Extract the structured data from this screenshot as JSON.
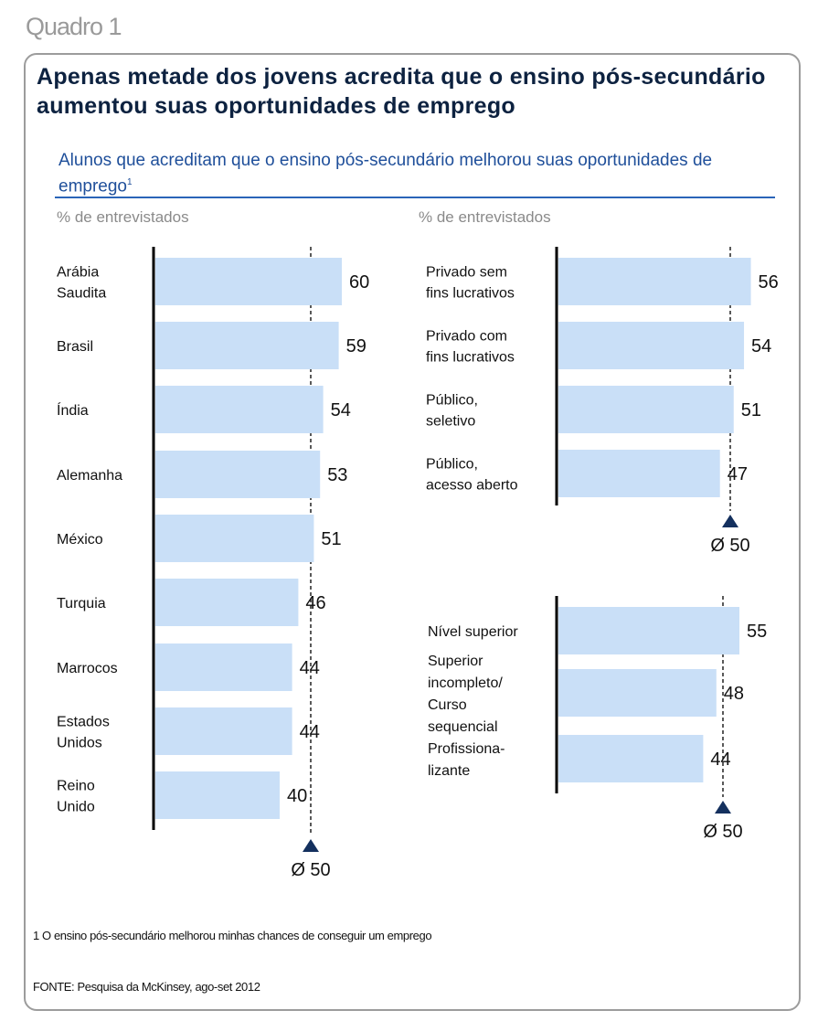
{
  "label": "Quadro 1",
  "title": "Apenas metade dos jovens acredita que o ensino  pós-secundário aumentou suas oportunidades de emprego",
  "subtitle": "Alunos que acreditam que o ensino pós-secundário melhorou suas oportunidades de emprego",
  "subtitle_footnote_mark": "1",
  "footnote": "1 O ensino pós-secundário melhorou minhas chances de conseguir um emprego",
  "source": "FONTE: Pesquisa da McKinsey, ago-set 2012",
  "colors": {
    "bar": "#c9dff7",
    "marker": "#14305e",
    "title": "#0d2240",
    "subtitle": "#1f4f9a"
  },
  "chart_data": [
    {
      "type": "bar",
      "orientation": "horizontal",
      "unit_label": "% de entrevistados",
      "categories": [
        "Arábia Saudita",
        "Brasil",
        "Índia",
        "Alemanha",
        "México",
        "Turquia",
        "Marrocos",
        "Estados Unidos",
        "Reino Unido"
      ],
      "category_lines": [
        [
          "Arábia",
          "Saudita"
        ],
        [
          "Brasil"
        ],
        [
          "Índia"
        ],
        [
          "Alemanha"
        ],
        [
          "México"
        ],
        [
          "Turquia"
        ],
        [
          "Marrocos"
        ],
        [
          "Estados",
          "Unidos"
        ],
        [
          "Reino",
          "Unido"
        ]
      ],
      "values": [
        60,
        59,
        54,
        53,
        51,
        46,
        44,
        44,
        40
      ],
      "reference": {
        "value": 50,
        "label": "Ø 50"
      }
    },
    {
      "type": "bar",
      "orientation": "horizontal",
      "unit_label": "% de entrevistados",
      "categories": [
        "Privado sem fins lucrativos",
        "Privado com fins lucrativos",
        "Público, seletivo",
        "Público, acesso aberto"
      ],
      "category_lines": [
        [
          "Privado sem",
          "fins lucrativos"
        ],
        [
          "Privado com",
          "fins lucrativos"
        ],
        [
          "Público,",
          "seletivo"
        ],
        [
          "Público,",
          "acesso aberto"
        ]
      ],
      "values": [
        56,
        54,
        51,
        47
      ],
      "reference": {
        "value": 50,
        "label": "Ø 50"
      }
    },
    {
      "type": "bar",
      "orientation": "horizontal",
      "categories": [
        "Nível superior",
        "Superior incompleto/ Curso sequencial",
        "Profissionalizante"
      ],
      "category_lines": [
        [
          "Nível superior"
        ],
        [
          "Superior",
          "incompleto/",
          "Curso",
          "sequencial"
        ],
        [
          "Profissiona-",
          "lizante"
        ]
      ],
      "values": [
        55,
        48,
        44
      ],
      "reference": {
        "value": 50,
        "label": "Ø 50"
      }
    }
  ]
}
